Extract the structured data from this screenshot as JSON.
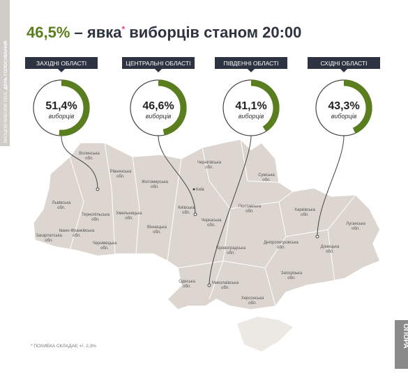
{
  "sidebar": {
    "title": "МІСЦЕВІ ВИБОРИ 2015.",
    "subtitle": "ДЕНЬ ГОЛОСУВАННЯ"
  },
  "title": {
    "value": "46,5%",
    "text1": "– явка",
    "mark": "*",
    "text2": "виборців станом 20:00"
  },
  "regions": [
    {
      "name": "ЗАХІДНІ ОБЛАСТІ",
      "value": 51.4,
      "label": "51,4%",
      "caption": "виборців"
    },
    {
      "name": "ЦЕНТРАЛЬНІ ОБЛАСТІ",
      "value": 46.6,
      "label": "46,6%",
      "caption": "виборців"
    },
    {
      "name": "ПІВДЕННІ ОБЛАСТІ",
      "value": 41.1,
      "label": "41,1%",
      "caption": "виборців"
    },
    {
      "name": "СХІДНІ ОБЛАСТІ",
      "value": 43.3,
      "label": "43,3%",
      "caption": "виборців"
    }
  ],
  "map": {
    "capital": "Київ",
    "suffix": "обл.",
    "oblasts": [
      "Волинська",
      "Рівненська",
      "Житомирська",
      "Чернігівська",
      "Сумська",
      "Львівська",
      "Тернопільська",
      "Хмельницька",
      "Київська",
      "Полтавська",
      "Харківська",
      "Луганська",
      "Закарпатська",
      "Івано-Франківська",
      "Чернівецька",
      "Вінницька",
      "Черкаська",
      "Кіровоградська",
      "Дніпропетровська",
      "Донецька",
      "Одеська",
      "Миколаївська",
      "Запорізька",
      "Херсонська"
    ]
  },
  "footnote": {
    "mark": "*",
    "text": "ПОХИБКА СКЛАДАЄ +/- 2,3%"
  },
  "logo": "ОПОРА"
}
